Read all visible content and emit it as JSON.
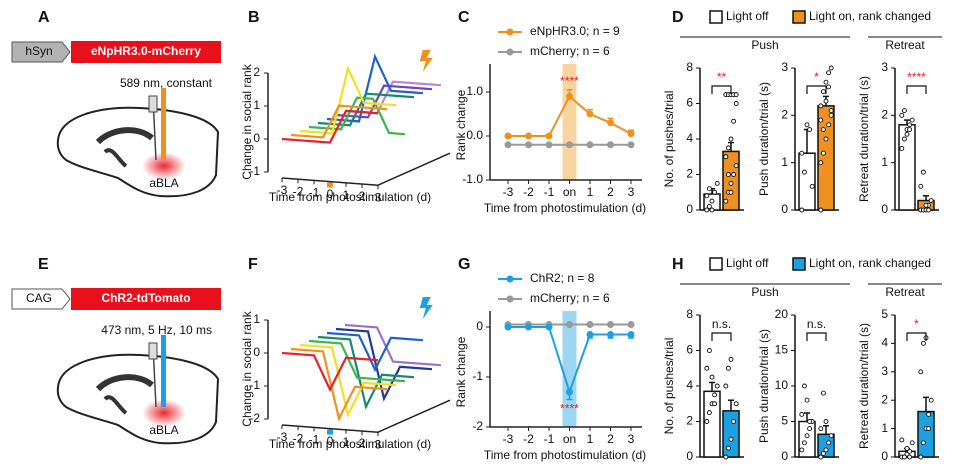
{
  "panel_labels": [
    "A",
    "B",
    "C",
    "D",
    "E",
    "F",
    "G",
    "H"
  ],
  "diagrams": [
    {
      "promoter": "hSyn",
      "promoter_color": "#b3b3b3",
      "construct": "eNpHR3.0-mCherry",
      "construct_color": "#e8101a",
      "stimulus": "589 nm, constant",
      "region": "aBLA",
      "color": "#f0901e"
    },
    {
      "promoter": "CAG",
      "promoter_color": "#ffffff",
      "construct": "ChR2-tdTomato",
      "construct_color": "#e8101a",
      "stimulus": "473 nm, 5 Hz, 10 ms",
      "region": "aBLA",
      "color": "#1ba1e2"
    }
  ],
  "chart_data": [
    {
      "type": "waterfall",
      "ylabel": "Change in social rank",
      "xlabel": "Time from photostimulation (d)",
      "stim_color": "#f0901e",
      "x": [
        -3,
        -2,
        -1,
        0,
        1,
        2,
        3
      ],
      "xlim": [
        -3,
        3
      ],
      "xticks": [
        -3,
        -2,
        -1,
        0,
        1,
        2,
        3
      ],
      "ylim": [
        -1,
        2
      ],
      "yticks": [
        -1,
        0,
        1,
        2
      ],
      "series": [
        {
          "color": "#e8202a",
          "values": [
            0,
            0,
            0,
            0,
            1,
            1,
            1
          ]
        },
        {
          "color": "#f0901e",
          "values": [
            0,
            0,
            0,
            1,
            1,
            1,
            1
          ]
        },
        {
          "color": "#f2e01e",
          "values": [
            0,
            0,
            0,
            2,
            1,
            1,
            1
          ]
        },
        {
          "color": "#3cb44b",
          "values": [
            0,
            0,
            0,
            1,
            1,
            0,
            0
          ]
        },
        {
          "color": "#138a6c",
          "values": [
            0,
            0,
            0,
            1,
            1,
            1,
            1
          ]
        },
        {
          "color": "#1f5fd1",
          "values": [
            0,
            0,
            0,
            2,
            1,
            1,
            1
          ]
        },
        {
          "color": "#7b3fb8",
          "values": [
            0,
            0,
            0,
            1,
            1,
            1,
            1
          ]
        },
        {
          "color": "#b08ad8",
          "values": [
            0,
            0,
            0,
            1,
            1,
            1,
            1
          ]
        }
      ]
    },
    {
      "type": "line",
      "xlabel": "Time from photostimulation (d)",
      "ylabel": "Rank change",
      "categories": [
        "-3",
        "-2",
        "-1",
        "on",
        "1",
        "2",
        "3"
      ],
      "highlight_category": "on",
      "highlight_color": "#f5c77e",
      "annotation": "****",
      "annotation_color": "#e0202a",
      "ylim": [
        -1,
        1.5
      ],
      "yticks": [
        {
          "value": -1,
          "label": "-1.0"
        },
        {
          "value": 0,
          "label": "0.0"
        },
        {
          "value": 1,
          "label": "1.0"
        }
      ],
      "series": [
        {
          "name": "eNpHR3.0; n = 9",
          "color": "#f0901e",
          "values": [
            0,
            0,
            0,
            0.9,
            0.5,
            0.3,
            0.05
          ],
          "errors": [
            0,
            0,
            0,
            0.15,
            0.1,
            0.1,
            0.08
          ]
        },
        {
          "name": "mCherry; n = 6",
          "color": "#999999",
          "values": [
            -0.2,
            -0.2,
            -0.2,
            -0.2,
            -0.2,
            -0.2,
            -0.2
          ],
          "errors": [
            0,
            0,
            0,
            0,
            0,
            0,
            0
          ]
        }
      ]
    },
    {
      "type": "bar_group",
      "groups": [
        "Push",
        "Retreat"
      ],
      "series": [
        {
          "name": "Light off",
          "color": "#ffffff"
        },
        {
          "name": "Light on, rank changed",
          "color": "#f0901e"
        }
      ],
      "subplots": [
        {
          "ylabel": "No. of pushes/trial",
          "ylim": [
            0,
            8
          ],
          "yticks": [
            0,
            2,
            4,
            6,
            8
          ],
          "values": [
            0.9,
            3.3
          ],
          "errors": [
            0.3,
            0.5
          ],
          "points": [
            [
              0,
              0.2,
              0.5,
              1,
              1.5,
              0.8,
              1.2,
              0
            ],
            [
              0.5,
              1,
              1.5,
              2,
              2.5,
              3,
              3.5,
              4,
              5,
              6,
              6.5,
              6.5,
              6.5,
              6.5,
              6.5,
              3,
              2,
              1
            ]
          ],
          "significance": "**",
          "significance_color": "#e0202a"
        },
        {
          "ylabel": "Push duration/trial (s)",
          "ylim": [
            0,
            3
          ],
          "yticks": [
            0,
            1,
            2,
            3
          ],
          "values": [
            1.2,
            2.2
          ],
          "errors": [
            0.5,
            0.2
          ],
          "points": [
            [
              0,
              0.8,
              1.8,
              1.7,
              0.5,
              1.2
            ],
            [
              0,
              1.2,
              1.5,
              1.8,
              2,
              2.2,
              2.5,
              2.7,
              2.9,
              3,
              1,
              1.7,
              2.3,
              2.6,
              2.1,
              1.9
            ]
          ],
          "significance": "*",
          "significance_color": "#e0202a"
        },
        {
          "ylabel": "Retreat duration/trial (s)",
          "ylim": [
            0,
            3
          ],
          "yticks": [
            0,
            1,
            2,
            3
          ],
          "values": [
            1.8,
            0.2
          ],
          "errors": [
            0.1,
            0.1
          ],
          "points": [
            [
              1.3,
              1.5,
              1.7,
              1.8,
              1.9,
              2,
              2.1,
              1.6,
              1.7
            ],
            [
              0,
              0,
              0,
              0.1,
              0.2,
              0.5,
              0.8,
              0.1,
              0
            ]
          ],
          "significance": "****",
          "significance_color": "#e0202a"
        }
      ]
    },
    {
      "type": "waterfall",
      "ylabel": "Change in social rank",
      "xlabel": "Time from photostimulation (d)",
      "stim_color": "#1ba1e2",
      "x": [
        -3,
        -2,
        -1,
        0,
        1,
        2,
        3
      ],
      "xlim": [
        -3,
        3
      ],
      "xticks": [
        -3,
        -2,
        -1,
        0,
        1,
        2,
        3
      ],
      "ylim": [
        -2,
        1
      ],
      "yticks": [
        -2,
        -1,
        0,
        1
      ],
      "series": [
        {
          "color": "#e8202a",
          "values": [
            0,
            0,
            0,
            -1,
            0,
            0,
            0
          ]
        },
        {
          "color": "#f0901e",
          "values": [
            0,
            0,
            0,
            -2,
            -1,
            -1,
            -1
          ]
        },
        {
          "color": "#f2e01e",
          "values": [
            0,
            0,
            0,
            -2,
            -1,
            -1,
            -1
          ]
        },
        {
          "color": "#3cb44b",
          "values": [
            0,
            0,
            0,
            -1,
            -1,
            -1,
            -1
          ]
        },
        {
          "color": "#138a6c",
          "values": [
            0,
            0,
            0,
            -2,
            -1,
            -1,
            -1
          ]
        },
        {
          "color": "#1f5fd1",
          "values": [
            0,
            0,
            0,
            -1,
            0,
            0,
            0
          ]
        },
        {
          "color": "#203a8f",
          "values": [
            0,
            0,
            0,
            -2,
            -1,
            -1,
            -1
          ]
        },
        {
          "color": "#9b6fcf",
          "values": [
            0,
            0,
            0,
            -1,
            -1,
            -1,
            -1
          ]
        }
      ]
    },
    {
      "type": "line",
      "xlabel": "Time from photostimulation (d)",
      "ylabel": "Rank change",
      "categories": [
        "-3",
        "-2",
        "-1",
        "on",
        "1",
        "2",
        "3"
      ],
      "highlight_category": "on",
      "highlight_color": "#7cc8ef",
      "annotation": "****",
      "annotation_color": "#e0202a",
      "ylim": [
        -2,
        0.2
      ],
      "yticks": [
        -2,
        -1,
        0
      ],
      "series": [
        {
          "name": "ChR2; n = 8",
          "color": "#1ba1e2",
          "values": [
            0,
            0,
            0,
            -1.3,
            -0.15,
            -0.15,
            -0.15
          ],
          "errors": [
            0,
            0,
            0,
            0.15,
            0.07,
            0.07,
            0.07
          ]
        },
        {
          "name": "mCherry; n = 6",
          "color": "#999999",
          "values": [
            0.05,
            0.05,
            0.05,
            0.05,
            0.05,
            0.05,
            0.05
          ],
          "errors": [
            0,
            0,
            0,
            0,
            0,
            0,
            0
          ]
        }
      ]
    },
    {
      "type": "bar_group",
      "groups": [
        "Push",
        "Retreat"
      ],
      "series": [
        {
          "name": "Light off",
          "color": "#ffffff"
        },
        {
          "name": "Light on, rank changed",
          "color": "#1ba1e2"
        }
      ],
      "subplots": [
        {
          "ylabel": "No. of pushes/trial",
          "ylim": [
            0,
            8
          ],
          "yticks": [
            0,
            2,
            4,
            6,
            8
          ],
          "values": [
            3.7,
            2.6
          ],
          "errors": [
            0.5,
            0.6
          ],
          "points": [
            [
              2,
              2.5,
              3,
              3.5,
              4,
              5,
              6,
              4.5,
              3
            ],
            [
              0,
              0.5,
              1,
              2,
              3,
              4,
              5,
              5.5
            ]
          ],
          "significance": "n.s.",
          "significance_color": "#111111"
        },
        {
          "ylabel": "Push duration/trial (s)",
          "ylim": [
            0,
            20
          ],
          "yticks": [
            0,
            5,
            10,
            15,
            20
          ],
          "values": [
            5,
            3.2
          ],
          "errors": [
            1.2,
            1.2
          ],
          "points": [
            [
              1,
              2,
              3,
              4,
              5,
              6,
              10,
              8,
              5
            ],
            [
              0,
              0.5,
              1,
              2,
              3,
              4,
              9,
              5
            ]
          ],
          "significance": "n.s.",
          "significance_color": "#111111"
        },
        {
          "ylabel": "Retreat duration/trial (s)",
          "ylim": [
            0,
            5
          ],
          "yticks": [
            0,
            1,
            2,
            3,
            4,
            5
          ],
          "values": [
            0.2,
            1.6
          ],
          "errors": [
            0.1,
            0.5
          ],
          "points": [
            [
              0,
              0,
              0.1,
              0.2,
              0.5,
              0.6,
              0,
              0.3,
              0
            ],
            [
              0,
              0.5,
              1,
              1.5,
              2,
              3,
              4,
              4.2,
              1
            ]
          ],
          "significance": "*",
          "significance_color": "#e0202a"
        }
      ]
    }
  ]
}
